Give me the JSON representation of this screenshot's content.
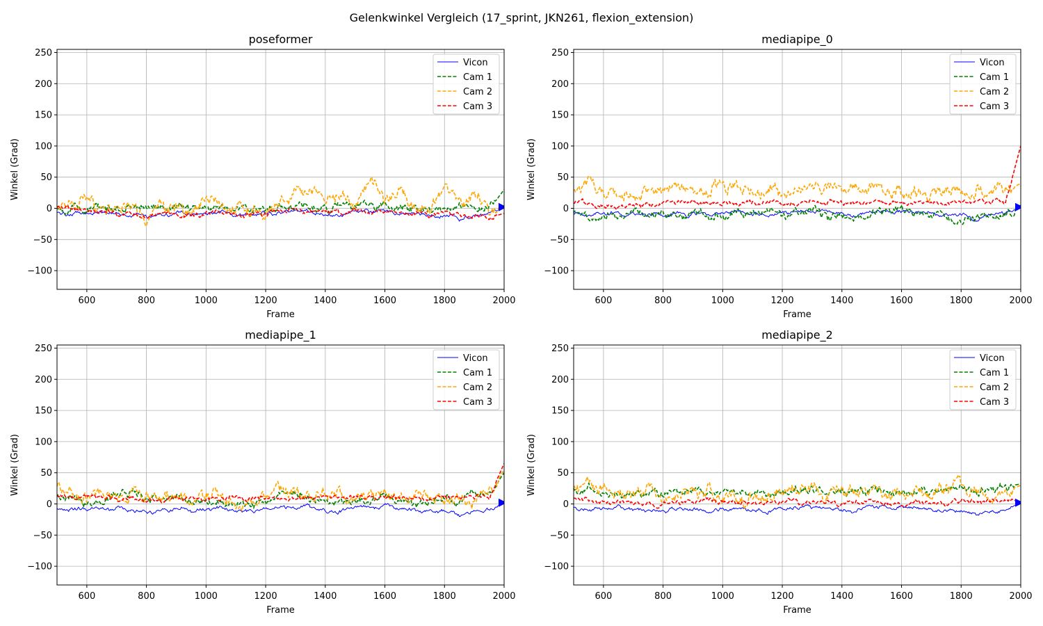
{
  "figure": {
    "suptitle": "Gelenkwinkel Vergleich (17_sprint, JKN261, flexion_extension)"
  },
  "colors": {
    "vicon": "#0000ff",
    "cam1": "#008000",
    "cam2": "#ffa500",
    "cam3": "#ff0000",
    "grid": "#b0b0b0",
    "axes": "#000000"
  },
  "chart_data": [
    {
      "type": "line",
      "title": "poseformer",
      "xlabel": "Frame",
      "ylabel": "Winkel (Grad)",
      "xlim": [
        500,
        2000
      ],
      "ylim": [
        -130,
        255
      ],
      "xticks": [
        600,
        800,
        1000,
        1200,
        1400,
        1600,
        1800,
        2000
      ],
      "yticks": [
        -100,
        -50,
        0,
        50,
        100,
        150,
        200,
        250
      ],
      "grid": true,
      "legend_position": "top-right",
      "x": [
        500,
        550,
        600,
        650,
        700,
        750,
        800,
        850,
        900,
        950,
        1000,
        1050,
        1100,
        1150,
        1200,
        1250,
        1300,
        1350,
        1400,
        1450,
        1500,
        1550,
        1600,
        1650,
        1700,
        1750,
        1800,
        1850,
        1900,
        1950,
        2000
      ],
      "series": [
        {
          "name": "Vicon",
          "style": "solid",
          "values": [
            -8,
            -9,
            -8,
            -7,
            -9,
            -10,
            -12,
            -9,
            -8,
            -10,
            -9,
            -6,
            -10,
            -11,
            -9,
            -6,
            -4,
            -5,
            -10,
            -12,
            -3,
            -6,
            -4,
            -7,
            -9,
            -12,
            -10,
            -18,
            -11,
            -10,
            2
          ]
        },
        {
          "name": "Cam 1",
          "style": "dashed",
          "values": [
            0,
            1,
            -1,
            0,
            2,
            1,
            -2,
            3,
            4,
            2,
            0,
            3,
            1,
            0,
            -1,
            2,
            6,
            4,
            1,
            0,
            2,
            6,
            3,
            5,
            2,
            0,
            -1,
            2,
            0,
            -2,
            30
          ]
        },
        {
          "name": "Cam 2",
          "style": "dashed",
          "values": [
            2,
            8,
            18,
            0,
            -2,
            2,
            -25,
            4,
            -2,
            -12,
            15,
            2,
            0,
            -2,
            -8,
            10,
            25,
            35,
            15,
            18,
            8,
            42,
            15,
            25,
            5,
            2,
            35,
            5,
            30,
            0,
            2
          ]
        },
        {
          "name": "Cam 3",
          "style": "dashed",
          "values": [
            3,
            -1,
            -3,
            -5,
            -8,
            -10,
            -14,
            -6,
            -9,
            -12,
            -8,
            -6,
            -12,
            -10,
            -8,
            -4,
            -2,
            -6,
            -4,
            -8,
            -2,
            -4,
            -5,
            -10,
            -8,
            -12,
            -6,
            -10,
            -12,
            -15,
            -8
          ]
        }
      ]
    },
    {
      "type": "line",
      "title": "mediapipe_0",
      "xlabel": "Frame",
      "ylabel": "Winkel (Grad)",
      "xlim": [
        500,
        2000
      ],
      "ylim": [
        -130,
        255
      ],
      "xticks": [
        600,
        800,
        1000,
        1200,
        1400,
        1600,
        1800,
        2000
      ],
      "yticks": [
        -100,
        -50,
        0,
        50,
        100,
        150,
        200,
        250
      ],
      "grid": true,
      "legend_position": "top-right",
      "x": [
        500,
        550,
        600,
        650,
        700,
        750,
        800,
        850,
        900,
        950,
        1000,
        1050,
        1100,
        1150,
        1200,
        1250,
        1300,
        1350,
        1400,
        1450,
        1500,
        1550,
        1600,
        1650,
        1700,
        1750,
        1800,
        1850,
        1900,
        1950,
        2000
      ],
      "series": [
        {
          "name": "Vicon",
          "style": "solid",
          "values": [
            -8,
            -9,
            -8,
            -7,
            -9,
            -10,
            -12,
            -9,
            -8,
            -10,
            -9,
            -6,
            -10,
            -11,
            -9,
            -6,
            -4,
            -5,
            -10,
            -12,
            -3,
            -6,
            -4,
            -7,
            -9,
            -12,
            -10,
            -18,
            -11,
            -10,
            2
          ]
        },
        {
          "name": "Cam 1",
          "style": "dashed",
          "values": [
            -5,
            -15,
            -8,
            -12,
            -5,
            -10,
            -8,
            -15,
            -6,
            -12,
            -15,
            -8,
            -10,
            -5,
            -12,
            -8,
            -3,
            -15,
            -10,
            -20,
            -8,
            -5,
            -2,
            -10,
            -8,
            -12,
            -20,
            -15,
            -10,
            -12,
            5
          ]
        },
        {
          "name": "Cam 2",
          "style": "dashed",
          "values": [
            35,
            40,
            25,
            20,
            15,
            25,
            30,
            35,
            30,
            25,
            35,
            30,
            25,
            30,
            28,
            32,
            30,
            35,
            25,
            30,
            35,
            25,
            30,
            28,
            25,
            30,
            28,
            25,
            30,
            28,
            40
          ]
        },
        {
          "name": "Cam 3",
          "style": "dashed",
          "values": [
            12,
            8,
            5,
            4,
            6,
            5,
            8,
            10,
            9,
            8,
            10,
            8,
            10,
            9,
            10,
            8,
            10,
            9,
            10,
            8,
            10,
            9,
            8,
            10,
            9,
            8,
            10,
            9,
            10,
            12,
            100
          ]
        }
      ]
    },
    {
      "type": "line",
      "title": "mediapipe_1",
      "xlabel": "Frame",
      "ylabel": "Winkel (Grad)",
      "xlim": [
        500,
        2000
      ],
      "ylim": [
        -130,
        255
      ],
      "xticks": [
        600,
        800,
        1000,
        1200,
        1400,
        1600,
        1800,
        2000
      ],
      "yticks": [
        -100,
        -50,
        0,
        50,
        100,
        150,
        200,
        250
      ],
      "grid": true,
      "legend_position": "top-right",
      "x": [
        500,
        550,
        600,
        650,
        700,
        750,
        800,
        850,
        900,
        950,
        1000,
        1050,
        1100,
        1150,
        1200,
        1250,
        1300,
        1350,
        1400,
        1450,
        1500,
        1550,
        1600,
        1650,
        1700,
        1750,
        1800,
        1850,
        1900,
        1950,
        2000
      ],
      "series": [
        {
          "name": "Vicon",
          "style": "solid",
          "values": [
            -8,
            -9,
            -8,
            -7,
            -9,
            -10,
            -12,
            -9,
            -8,
            -10,
            -9,
            -6,
            -10,
            -11,
            -9,
            -6,
            -4,
            -5,
            -10,
            -12,
            -3,
            -6,
            -4,
            -7,
            -9,
            -12,
            -10,
            -18,
            -11,
            -10,
            2
          ]
        },
        {
          "name": "Cam 1",
          "style": "dashed",
          "values": [
            15,
            5,
            0,
            8,
            12,
            20,
            10,
            5,
            12,
            8,
            2,
            5,
            -2,
            0,
            5,
            10,
            15,
            8,
            5,
            0,
            5,
            8,
            10,
            5,
            0,
            5,
            8,
            0,
            20,
            15,
            50
          ]
        },
        {
          "name": "Cam 2",
          "style": "dashed",
          "values": [
            30,
            15,
            10,
            25,
            5,
            20,
            10,
            8,
            15,
            5,
            20,
            10,
            0,
            5,
            15,
            25,
            20,
            10,
            25,
            15,
            10,
            20,
            15,
            10,
            20,
            15,
            0,
            5,
            10,
            15,
            55
          ]
        },
        {
          "name": "Cam 3",
          "style": "dashed",
          "values": [
            15,
            10,
            10,
            12,
            8,
            10,
            8,
            6,
            10,
            8,
            6,
            8,
            10,
            8,
            10,
            12,
            10,
            8,
            10,
            8,
            10,
            12,
            10,
            8,
            10,
            8,
            10,
            8,
            12,
            10,
            65
          ]
        }
      ]
    },
    {
      "type": "line",
      "title": "mediapipe_2",
      "xlabel": "Frame",
      "ylabel": "Winkel (Grad)",
      "xlim": [
        500,
        2000
      ],
      "ylim": [
        -130,
        255
      ],
      "xticks": [
        600,
        800,
        1000,
        1200,
        1400,
        1600,
        1800,
        2000
      ],
      "yticks": [
        -100,
        -50,
        0,
        50,
        100,
        150,
        200,
        250
      ],
      "grid": true,
      "legend_position": "top-right",
      "x": [
        500,
        550,
        600,
        650,
        700,
        750,
        800,
        850,
        900,
        950,
        1000,
        1050,
        1100,
        1150,
        1200,
        1250,
        1300,
        1350,
        1400,
        1450,
        1500,
        1550,
        1600,
        1650,
        1700,
        1750,
        1800,
        1850,
        1900,
        1950,
        2000
      ],
      "series": [
        {
          "name": "Vicon",
          "style": "solid",
          "values": [
            -8,
            -9,
            -8,
            -7,
            -9,
            -10,
            -12,
            -9,
            -8,
            -10,
            -9,
            -6,
            -10,
            -11,
            -9,
            -6,
            -4,
            -5,
            -10,
            -12,
            -3,
            -6,
            -4,
            -7,
            -9,
            -12,
            -10,
            -18,
            -11,
            -10,
            2
          ]
        },
        {
          "name": "Cam 1",
          "style": "dashed",
          "values": [
            20,
            25,
            15,
            10,
            15,
            20,
            18,
            22,
            25,
            20,
            18,
            22,
            20,
            15,
            18,
            20,
            22,
            20,
            18,
            20,
            22,
            20,
            18,
            22,
            20,
            25,
            22,
            20,
            25,
            28,
            32
          ]
        },
        {
          "name": "Cam 2",
          "style": "dashed",
          "values": [
            25,
            30,
            20,
            15,
            10,
            25,
            15,
            20,
            15,
            25,
            10,
            15,
            10,
            12,
            20,
            25,
            30,
            15,
            20,
            15,
            30,
            15,
            10,
            20,
            15,
            25,
            30,
            15,
            10,
            20,
            30
          ]
        },
        {
          "name": "Cam 3",
          "style": "dashed",
          "values": [
            8,
            5,
            2,
            4,
            0,
            2,
            0,
            4,
            2,
            5,
            2,
            4,
            0,
            2,
            4,
            5,
            2,
            4,
            0,
            2,
            4,
            2,
            0,
            4,
            2,
            0,
            4,
            2,
            5,
            8,
            3
          ]
        }
      ]
    }
  ]
}
